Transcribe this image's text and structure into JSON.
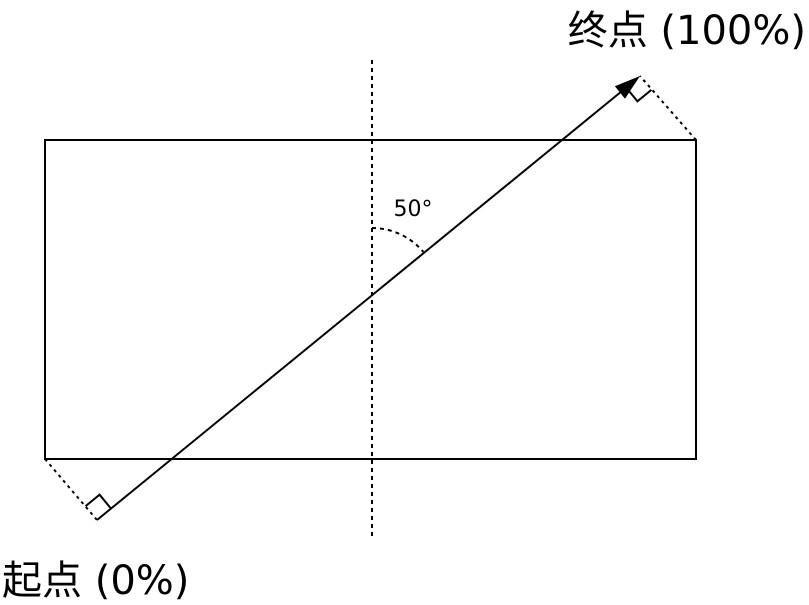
{
  "labels": {
    "end": "终点 (100%)",
    "start": "起点 (0%)",
    "angle": "50°"
  }
}
